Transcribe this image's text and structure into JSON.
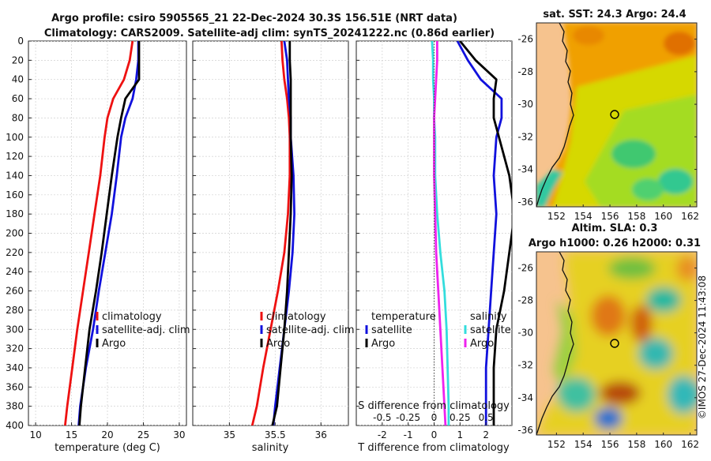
{
  "header": {
    "line1": "Argo profile: csiro 5905565_21 22-Dec-2024 30.3S 156.51E (NRT data)",
    "line2": "Climatology: CARS2009. Satellite-adj clim: synTS_20241222.nc (0.86d earlier)"
  },
  "credit": "©IMOS 27-Dec-2024 11:43:08",
  "colors": {
    "climatology": "#ee1111",
    "satellite": "#1111dd",
    "argo": "#000000",
    "sal_sat": "#33dddd",
    "sal_argo": "#ee22ee"
  },
  "chart_data": [
    {
      "type": "line",
      "name": "temperature",
      "xlabel": "temperature (deg C)",
      "ylabel": "",
      "xlim": [
        9,
        31
      ],
      "ylim": [
        400,
        0
      ],
      "xticks": [
        "10",
        "15",
        "20",
        "25",
        "30"
      ],
      "yticks": [
        "0",
        "20",
        "40",
        "60",
        "80",
        "100",
        "120",
        "140",
        "160",
        "180",
        "200",
        "220",
        "240",
        "260",
        "280",
        "300",
        "320",
        "340",
        "360",
        "380",
        "400"
      ],
      "legend": [
        "climatology",
        "satellite-adj. clim",
        "Argo"
      ],
      "depth": [
        0,
        20,
        40,
        60,
        80,
        100,
        140,
        180,
        220,
        260,
        300,
        340,
        380,
        400
      ],
      "series": [
        {
          "name": "climatology",
          "values": [
            23.5,
            23.1,
            22.3,
            20.8,
            20.0,
            19.6,
            19.0,
            18.2,
            17.4,
            16.6,
            15.8,
            15.1,
            14.4,
            14.1
          ]
        },
        {
          "name": "satellite-adj. clim",
          "values": [
            24.3,
            24.3,
            24.0,
            23.5,
            22.5,
            21.9,
            21.3,
            20.6,
            19.7,
            18.8,
            18.0,
            17.0,
            16.2,
            16.0
          ]
        },
        {
          "name": "Argo",
          "values": [
            24.4,
            24.4,
            24.4,
            22.5,
            21.9,
            21.4,
            20.6,
            19.9,
            19.2,
            18.4,
            17.5,
            16.9,
            16.3,
            16.1
          ]
        }
      ]
    },
    {
      "type": "line",
      "name": "salinity",
      "xlabel": "salinity",
      "ylabel": "",
      "xlim": [
        34.6,
        36.3
      ],
      "ylim": [
        400,
        0
      ],
      "xticks": [
        "35",
        "35.5",
        "36"
      ],
      "legend": [
        "climatology",
        "satellite-adj. clim",
        "Argo"
      ],
      "depth": [
        0,
        20,
        40,
        60,
        80,
        100,
        140,
        180,
        220,
        260,
        300,
        340,
        380,
        400
      ],
      "series": [
        {
          "name": "climatology",
          "values": [
            35.57,
            35.58,
            35.6,
            35.63,
            35.65,
            35.66,
            35.66,
            35.64,
            35.6,
            35.53,
            35.45,
            35.37,
            35.3,
            35.25
          ]
        },
        {
          "name": "satellite-adj. clim",
          "values": [
            35.6,
            35.63,
            35.64,
            35.65,
            35.67,
            35.67,
            35.7,
            35.71,
            35.69,
            35.65,
            35.6,
            35.55,
            35.5,
            35.48
          ]
        },
        {
          "name": "Argo",
          "values": [
            35.66,
            35.66,
            35.67,
            35.67,
            35.67,
            35.67,
            35.68,
            35.67,
            35.65,
            35.63,
            35.6,
            35.56,
            35.52,
            35.47
          ]
        }
      ]
    },
    {
      "type": "line",
      "name": "difference",
      "xlabel": "T difference from climatology",
      "top_xlabel": "S difference from climatology",
      "xlim": [
        -3,
        3
      ],
      "top_xlim": [
        -0.75,
        0.75
      ],
      "ylim": [
        400,
        0
      ],
      "xticks": [
        "-2",
        "-1",
        "0",
        "1",
        "2"
      ],
      "top_xticks": [
        "-0.5",
        "-0.25",
        "0",
        "0.25",
        "0.5"
      ],
      "legend_left_title": "temperature",
      "legend_right_title": "salinity",
      "legend_left": [
        "satellite",
        "Argo"
      ],
      "legend_right": [
        "satellite",
        "Argo"
      ],
      "depth": [
        0,
        20,
        40,
        60,
        80,
        100,
        140,
        180,
        220,
        260,
        300,
        340,
        380,
        400
      ],
      "series": [
        {
          "name": "T satellite",
          "values": [
            0.9,
            1.3,
            1.8,
            2.6,
            2.6,
            2.4,
            2.3,
            2.4,
            2.3,
            2.2,
            2.1,
            2.0,
            2.0,
            2.0
          ]
        },
        {
          "name": "T Argo",
          "values": [
            1.0,
            1.6,
            2.4,
            2.3,
            2.3,
            2.5,
            2.9,
            3.1,
            2.9,
            2.7,
            2.4,
            2.3,
            2.3,
            2.3
          ]
        },
        {
          "name": "S satellite",
          "values": [
            -0.02,
            -0.01,
            -0.01,
            0.0,
            0.0,
            0.01,
            0.01,
            0.03,
            0.06,
            0.1,
            0.12,
            0.13,
            0.14,
            0.14
          ]
        },
        {
          "name": "S Argo",
          "values": [
            0.03,
            0.03,
            0.02,
            0.01,
            0.0,
            0.0,
            0.0,
            0.01,
            0.02,
            0.04,
            0.06,
            0.08,
            0.1,
            0.11
          ]
        }
      ]
    }
  ],
  "maps": [
    {
      "title": "sat. SST: 24.3 Argo: 24.4",
      "yticks": [
        "-26",
        "-28",
        "-30",
        "-32",
        "-34",
        "-36"
      ],
      "xticks": [
        "152",
        "154",
        "156",
        "158",
        "160",
        "162"
      ]
    },
    {
      "title_line1": "Altim. SLA: 0.3",
      "title_line2": "Argo h1000: 0.26 h2000: 0.31",
      "yticks": [
        "-26",
        "-28",
        "-30",
        "-32",
        "-34",
        "-36"
      ],
      "xticks": [
        "152",
        "154",
        "156",
        "158",
        "160",
        "162"
      ]
    }
  ]
}
